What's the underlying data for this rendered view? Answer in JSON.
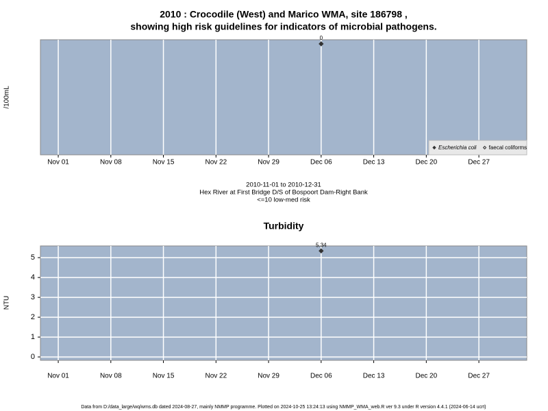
{
  "chart_data": [
    {
      "type": "scatter",
      "title": [
        "2010 : Crocodile (West) and Marico WMA, site 186798 ,",
        "showing high risk guidelines for indicators of microbial pathogens."
      ],
      "ylabel": "/100mL",
      "caption": [
        "2010-11-01 to 2010-12-31",
        "Hex River at First Bridge D/S of Bospoort Dam-Right Bank",
        "<=10 low-med risk"
      ],
      "xlim": [
        "2010-10-29T15:00",
        "2011-01-02T09:00"
      ],
      "xticks": [
        {
          "value": "2010-11-01",
          "label": "Nov 01"
        },
        {
          "value": "2010-11-08",
          "label": "Nov 08"
        },
        {
          "value": "2010-11-15",
          "label": "Nov 15"
        },
        {
          "value": "2010-11-22",
          "label": "Nov 22"
        },
        {
          "value": "2010-11-29",
          "label": "Nov 29"
        },
        {
          "value": "2010-12-06",
          "label": "Dec 06"
        },
        {
          "value": "2010-12-13",
          "label": "Dec 13"
        },
        {
          "value": "2010-12-20",
          "label": "Dec 20"
        },
        {
          "value": "2010-12-27",
          "label": "Dec 27"
        }
      ],
      "ylim": [
        -27,
        1
      ],
      "grid": true,
      "background": "#a3b5cc",
      "legend": "bottom-right",
      "series": [
        {
          "name": "Escherichia coli",
          "color": "#333333",
          "marker": "filled",
          "x": [
            "2010-12-06"
          ],
          "values": [
            0
          ]
        },
        {
          "name": "faecal coliforms",
          "color": "#333333",
          "marker": "open",
          "x": [],
          "values": []
        }
      ]
    },
    {
      "type": "scatter",
      "title": "Turbidity",
      "ylabel": "NTU",
      "xlim": [
        "2010-10-29T15:00",
        "2011-01-02T09:00"
      ],
      "xticks": [
        {
          "value": "2010-11-01",
          "label": "Nov 01"
        },
        {
          "value": "2010-11-08",
          "label": "Nov 08"
        },
        {
          "value": "2010-11-15",
          "label": "Nov 15"
        },
        {
          "value": "2010-11-22",
          "label": "Nov 22"
        },
        {
          "value": "2010-11-29",
          "label": "Nov 29"
        },
        {
          "value": "2010-12-06",
          "label": "Dec 06"
        },
        {
          "value": "2010-12-13",
          "label": "Dec 13"
        },
        {
          "value": "2010-12-20",
          "label": "Dec 20"
        },
        {
          "value": "2010-12-27",
          "label": "Dec 27"
        }
      ],
      "ylim": [
        -0.17,
        5.59
      ],
      "yticks": [
        0,
        1,
        2,
        3,
        4,
        5
      ],
      "grid": true,
      "background": "#a3b5cc",
      "series": [
        {
          "name": "Turbidity",
          "color": "#333333",
          "marker": "filled",
          "x": [
            "2010-12-06"
          ],
          "values": [
            5.34
          ]
        }
      ]
    }
  ],
  "footer": "Data from D:/data_large/wq/wms.db dated 2024-08-27, mainly NMMP programme. Plotted on 2024-10-25 13:24:13 using NMMP_WMA_web.R ver 9.3 under R version 4.4.1 (2024-06-14 ucrt)"
}
